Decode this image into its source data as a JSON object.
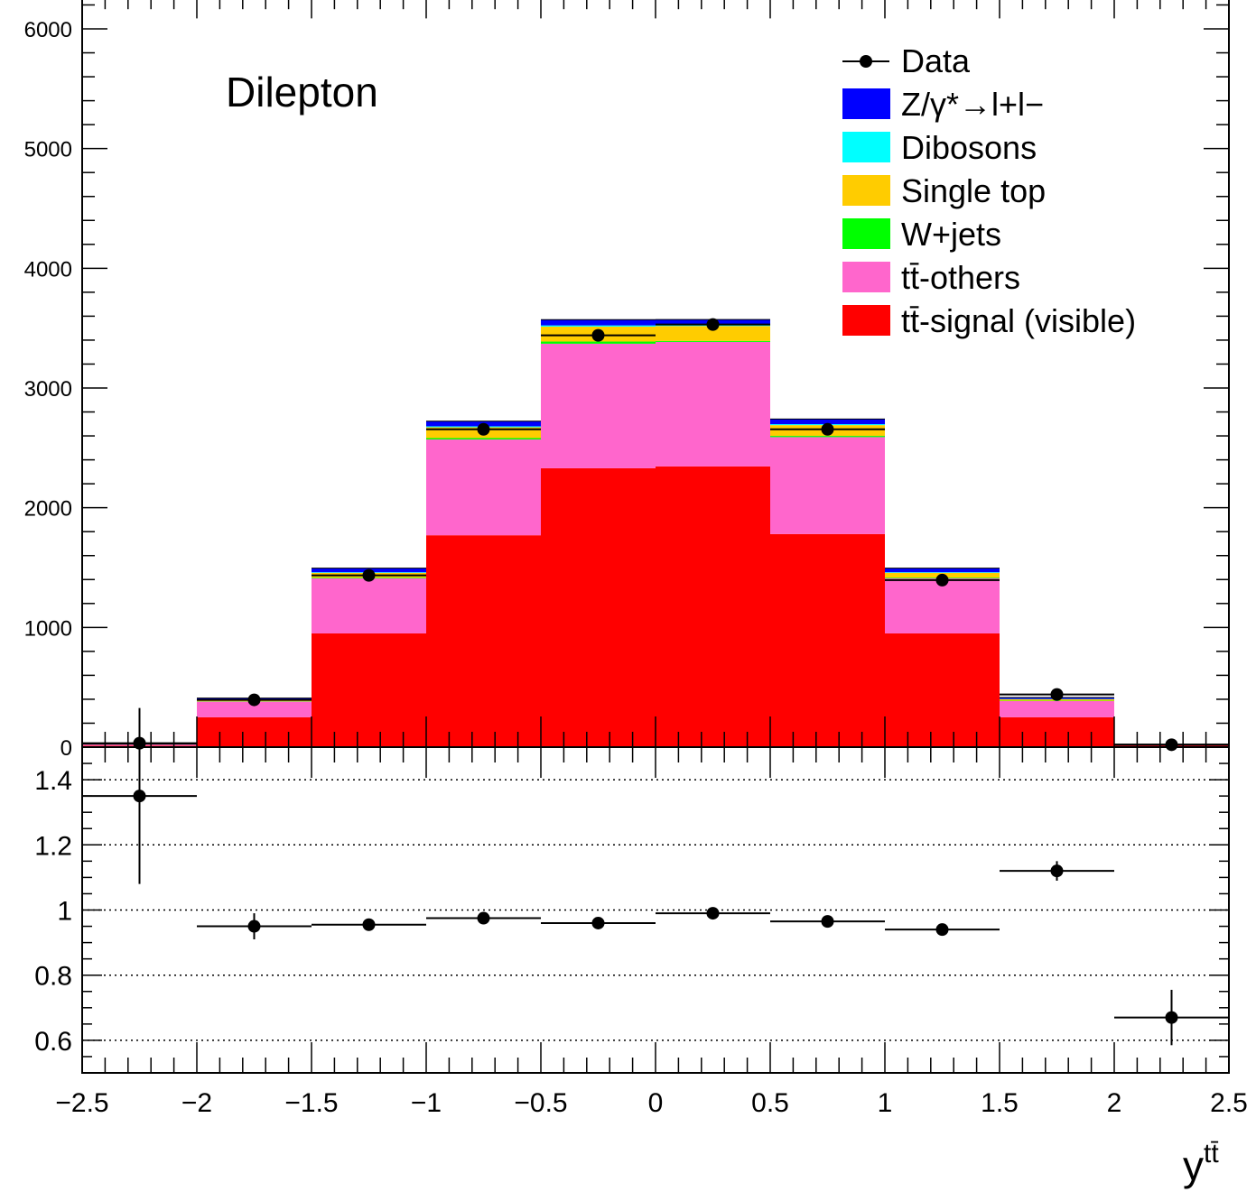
{
  "chart_data": {
    "type": "bar",
    "annotation": "Dilepton",
    "xlabel": "y",
    "xlabel_sup": "tt̄",
    "bin_edges": [
      -2.5,
      -2.0,
      -1.5,
      -1.0,
      -0.5,
      0.0,
      0.5,
      1.0,
      1.5,
      2.0,
      2.5
    ],
    "x_tick_labels": [
      "−2.5",
      "−2",
      "−1.5",
      "−1",
      "−0.5",
      "0",
      "0.5",
      "1",
      "1.5",
      "2",
      "2.5"
    ],
    "upper": {
      "ylim": [
        0,
        6000
      ],
      "y_tick_labels": [
        "0",
        "1000",
        "2000",
        "3000",
        "4000",
        "5000",
        "6000"
      ],
      "stack": [
        {
          "name": "tt̄-signal (visible)",
          "color": "#ff0000",
          "values": [
            12,
            250,
            950,
            1770,
            2330,
            2345,
            1780,
            950,
            250,
            12
          ]
        },
        {
          "name": "tt̄-others",
          "color": "#ff66cc",
          "values": [
            10,
            130,
            460,
            800,
            1040,
            1040,
            810,
            460,
            135,
            10
          ]
        },
        {
          "name": "W+jets",
          "color": "#00ff00",
          "values": [
            0,
            3,
            6,
            12,
            18,
            8,
            10,
            6,
            3,
            0
          ]
        },
        {
          "name": "Single top",
          "color": "#ffcc00",
          "values": [
            1,
            12,
            40,
            90,
            125,
            125,
            90,
            40,
            12,
            1
          ]
        },
        {
          "name": "Dibosons",
          "color": "#00ffff",
          "values": [
            0,
            2,
            5,
            8,
            10,
            10,
            8,
            5,
            2,
            0
          ]
        },
        {
          "name": "Z/γ*→l+l−",
          "color": "#0000ff",
          "values": [
            2,
            13,
            34,
            43,
            48,
            44,
            43,
            34,
            13,
            2
          ]
        }
      ],
      "data": {
        "name": "Data",
        "values": [
          33,
          395,
          1435,
          2655,
          3440,
          3530,
          2655,
          1395,
          440,
          20
        ]
      }
    },
    "ratio": {
      "ylim": [
        0.5,
        1.5
      ],
      "y_tick_labels": [
        "0.6",
        "0.8",
        "1",
        "1.2",
        "1.4"
      ],
      "gridlines": [
        0.6,
        0.8,
        1.0,
        1.2,
        1.4
      ],
      "values": [
        1.35,
        0.95,
        0.955,
        0.975,
        0.96,
        0.99,
        0.965,
        0.94,
        1.12,
        0.67
      ],
      "errors": [
        0.27,
        0.04,
        0.015,
        0.01,
        0.01,
        0.01,
        0.01,
        0.015,
        0.03,
        0.085
      ]
    },
    "legend_position": "top-right"
  }
}
